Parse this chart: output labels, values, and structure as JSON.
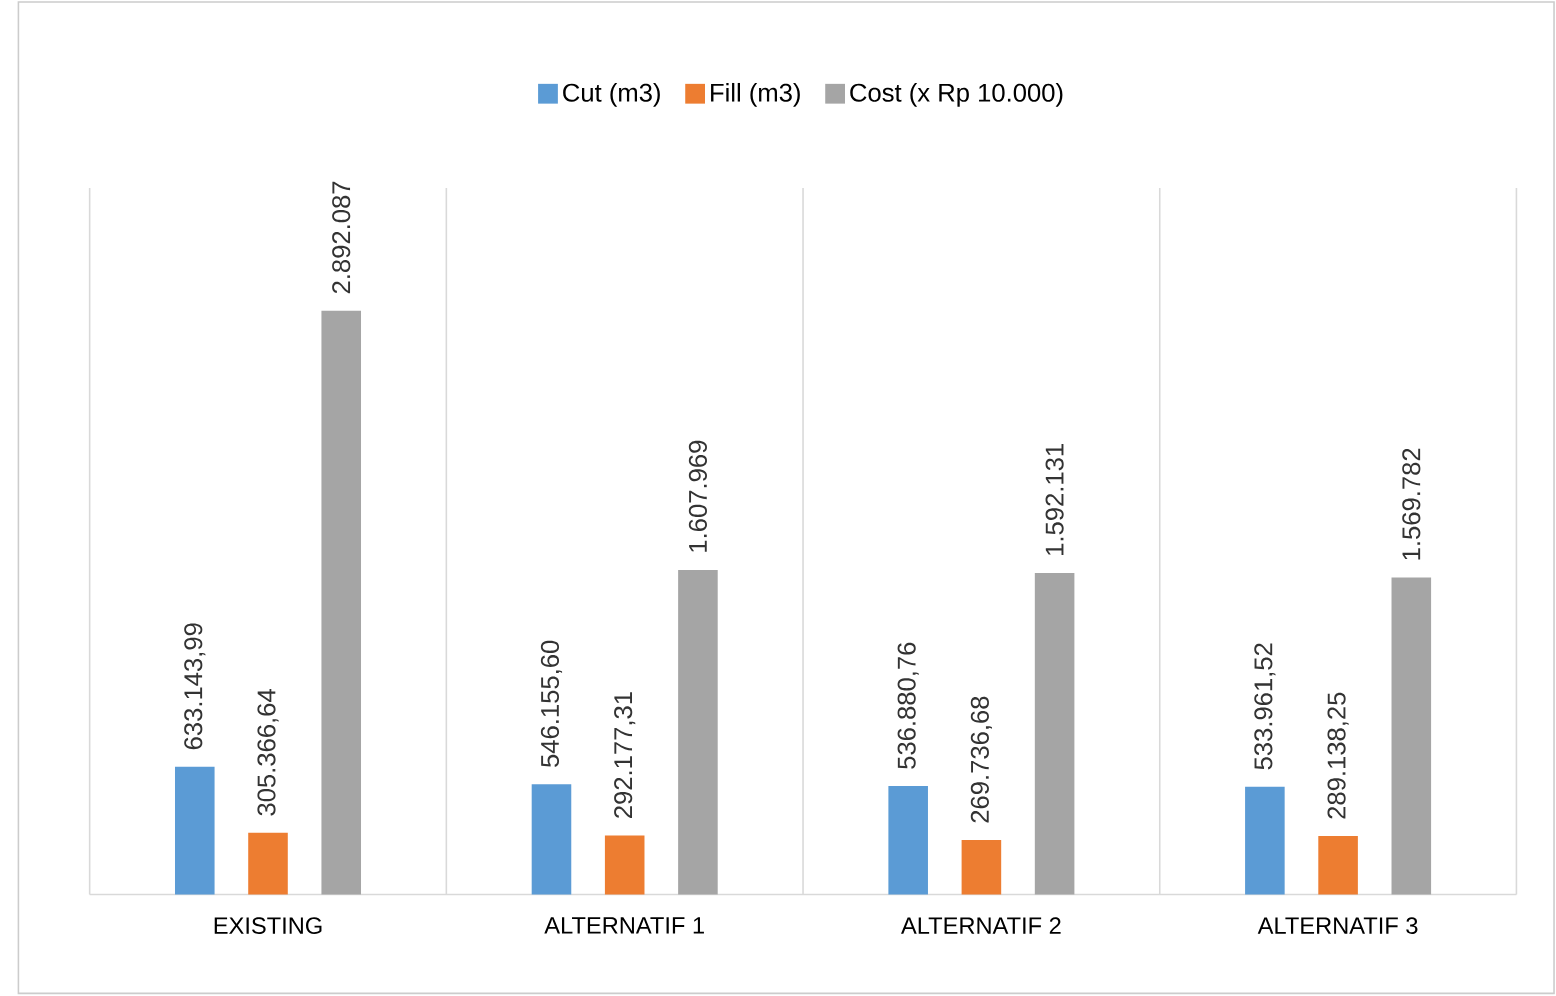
{
  "chart_data": {
    "type": "bar",
    "categories": [
      "EXISTING",
      "ALTERNATIF 1",
      "ALTERNATIF 2",
      "ALTERNATIF 3"
    ],
    "series": [
      {
        "name": "Cut (m3)",
        "color": "#5b9bd5",
        "values": [
          633143.99,
          546155.6,
          536880.76,
          533961.52
        ],
        "value_labels": [
          "633.143,99",
          "546.155,60",
          "536.880,76",
          "533.961,52"
        ]
      },
      {
        "name": "Fill (m3)",
        "color": "#ed7d31",
        "values": [
          305366.64,
          292177.31,
          269736.68,
          289138.25
        ],
        "value_labels": [
          "305.366,64",
          "292.177,31",
          "269.736,68",
          "289.138,25"
        ]
      },
      {
        "name": "Cost (x Rp 10.000)",
        "color": "#a5a5a5",
        "values": [
          2892087,
          1607969,
          1592131,
          1569782
        ],
        "value_labels": [
          "2.892.087",
          "1.607.969",
          "1.592.131",
          "1.569.782"
        ]
      }
    ],
    "ylim": [
      0,
      3500000
    ],
    "tick_labels": "x",
    "grid": "x",
    "legend": "top"
  }
}
